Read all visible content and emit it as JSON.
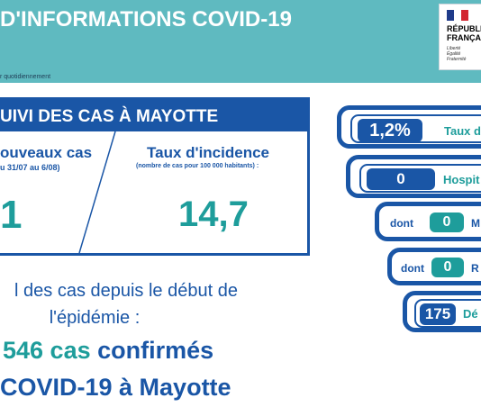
{
  "header": {
    "title": "D'INFORMATIONS COVID-19",
    "updated_note": "r quotidiennement",
    "logo": {
      "line1": "RÉPUBLIQUE",
      "line2": "FRANÇAISE",
      "motto": "Liberté\nÉgalité\nFraternité"
    }
  },
  "colors": {
    "teal_header": "#5fbac0",
    "blue": "#1a56a6",
    "teal_value": "#1e9d9b"
  },
  "main_panel": {
    "title": "UIVI DES CAS À MAYOTTE",
    "new_cases": {
      "title": "ouveaux cas",
      "subtitle": "u 31/07 au 6/08)",
      "value": "1"
    },
    "incidence": {
      "title": "Taux d'incidence",
      "subtitle": "(nombre de cas pour 100 000 habitants) :",
      "value": "14,7"
    }
  },
  "totals": {
    "line1": "l des cas depuis le début de",
    "line2": "l'épidémie :",
    "confirmed_number": "546 cas",
    "confirmed_label": "confirmés",
    "location_line": "COVID-19 à Mayotte"
  },
  "side_stats": [
    {
      "value": "1,2%",
      "label": "Taux d"
    },
    {
      "value": "0",
      "label": "Hospit"
    },
    {
      "prefix": "dont",
      "value": "0",
      "label": "M"
    },
    {
      "prefix": "dont",
      "value": "0",
      "label": "R"
    },
    {
      "value": "175",
      "label": "Dé"
    }
  ]
}
